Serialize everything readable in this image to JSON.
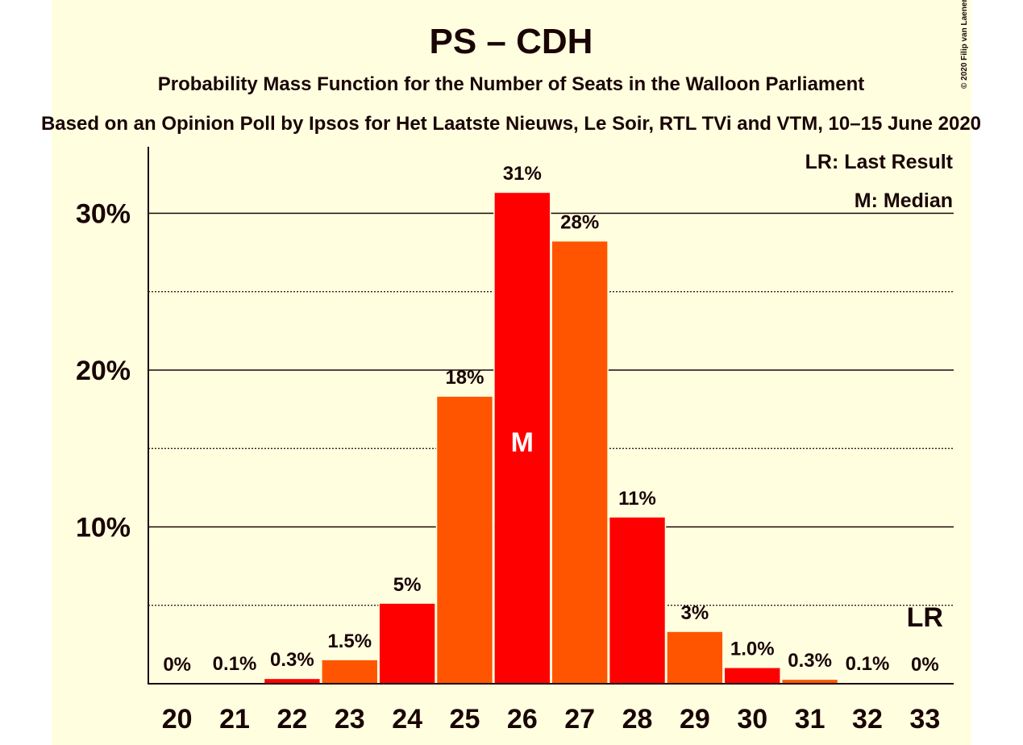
{
  "chart_data": {
    "type": "bar",
    "title": "PS – CDH",
    "subtitle": "Probability Mass Function for the Number of Seats in the Walloon Parliament",
    "source_line": "Based on an Opinion Poll by Ipsos for Het Laatste Nieuws, Le Soir, RTL TVi and VTM, 10–15 June 2020",
    "copyright": "© 2020 Filip van Laenen",
    "legend": [
      "LR: Last Result",
      "M: Median"
    ],
    "legend_position": "top-right",
    "categories": [
      "20",
      "21",
      "22",
      "23",
      "24",
      "25",
      "26",
      "27",
      "28",
      "29",
      "30",
      "31",
      "32",
      "33"
    ],
    "values": [
      0,
      0.05,
      0.3,
      1.5,
      5.1,
      18.3,
      31.3,
      28.2,
      10.6,
      3.3,
      1.0,
      0.25,
      0.05,
      0
    ],
    "value_labels": [
      "0%",
      "0.1%",
      "0.3%",
      "1.5%",
      "5%",
      "18%",
      "31%",
      "28%",
      "11%",
      "3%",
      "1.0%",
      "0.3%",
      "0.1%",
      "0%"
    ],
    "colors": [
      "#ff0000",
      "#ff5500",
      "#ff0000",
      "#ff5500",
      "#ff0000",
      "#ff5500",
      "#ff0000",
      "#ff5500",
      "#ff0000",
      "#ff5500",
      "#ff0000",
      "#ff5500",
      "#ff0000",
      "#ff5500"
    ],
    "median_category": "26",
    "median_marker": "M",
    "last_result_category": "33",
    "last_result_marker": "LR",
    "y_ticks": [
      10,
      20,
      30
    ],
    "y_tick_labels": [
      "10%",
      "20%",
      "30%"
    ],
    "minor_gridlines": [
      5,
      15,
      25
    ],
    "ylim": [
      0,
      34
    ],
    "grid": true
  }
}
